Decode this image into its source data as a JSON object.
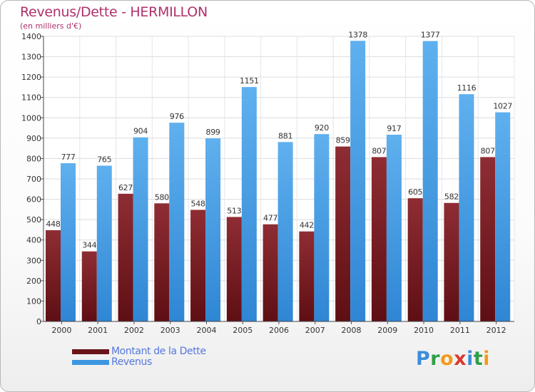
{
  "header": {
    "title": "Revenus/Dette - HERMILLON",
    "subtitle": "(en milliers d'€)"
  },
  "colors": {
    "dette": "#7a1e24",
    "revenus": "#3d97e0",
    "title": "#b0306c",
    "legend_text": "#5577dd"
  },
  "chart_data": {
    "type": "bar",
    "title": "Revenus/Dette - HERMILLON",
    "subtitle": "(en milliers d'€)",
    "categories": [
      "2000",
      "2001",
      "2002",
      "2003",
      "2004",
      "2005",
      "2006",
      "2007",
      "2008",
      "2009",
      "2010",
      "2011",
      "2012"
    ],
    "series": [
      {
        "name": "Montant de la Dette",
        "values": [
          448,
          344,
          627,
          580,
          548,
          513,
          477,
          442,
          859,
          807,
          605,
          582,
          807
        ]
      },
      {
        "name": "Revenus",
        "values": [
          777,
          765,
          904,
          976,
          899,
          1151,
          881,
          920,
          1378,
          917,
          1377,
          1116,
          1027
        ]
      }
    ],
    "ylim": [
      0,
      1400
    ],
    "yticks": [
      0,
      100,
      200,
      300,
      400,
      500,
      600,
      700,
      800,
      900,
      1000,
      1100,
      1200,
      1300,
      1400
    ],
    "grid": true,
    "legend_position": "bottom-left"
  },
  "legend": {
    "items": [
      {
        "label": "Montant de la Dette"
      },
      {
        "label": "Revenus"
      }
    ]
  },
  "logo": {
    "letters": [
      "P",
      "r",
      "o",
      "x",
      "i",
      "t",
      "i"
    ],
    "colors": [
      "#3b8ddb",
      "#2f9f48",
      "#f29a1b",
      "#d93a2b",
      "#3b8ddb",
      "#2f9f48",
      "#f29a1b"
    ]
  }
}
